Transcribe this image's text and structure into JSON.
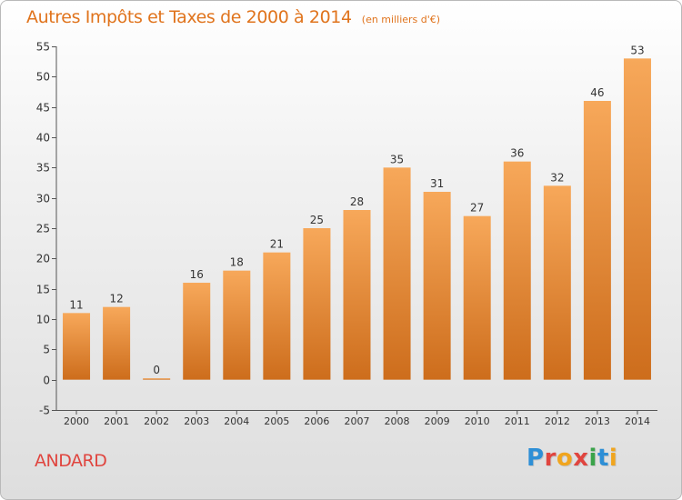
{
  "header": {
    "title": "Autres Impôts et Taxes de 2000 à 2014",
    "subtitle": "(en milliers d'€)"
  },
  "footer": {
    "commune": "ANDARD",
    "brand": "Proxiti",
    "brand_colors": [
      "#2e8fd6",
      "#e0453f",
      "#f0a51f",
      "#e0453f",
      "#3aa34a",
      "#2e8fd6",
      "#f0a51f"
    ]
  },
  "chart_data": {
    "type": "bar",
    "categories": [
      "2000",
      "2001",
      "2002",
      "2003",
      "2004",
      "2005",
      "2006",
      "2007",
      "2008",
      "2009",
      "2010",
      "2011",
      "2012",
      "2013",
      "2014"
    ],
    "values": [
      11,
      12,
      0,
      16,
      18,
      21,
      25,
      28,
      35,
      31,
      27,
      36,
      32,
      46,
      53
    ],
    "data_labels": [
      "11",
      "12",
      "0",
      "16",
      "18",
      "21",
      "25",
      "28",
      "35",
      "31",
      "27",
      "36",
      "32",
      "46",
      "53"
    ],
    "ylim": [
      -5,
      55
    ],
    "yticks": [
      -5,
      0,
      5,
      10,
      15,
      20,
      25,
      30,
      35,
      40,
      45,
      50,
      55
    ],
    "grid": false,
    "colors": {
      "bar_top": "#f7a85a",
      "bar_bottom": "#cd6d1c",
      "axis": "#555555",
      "text": "#333333",
      "title": "#e0741d"
    }
  }
}
